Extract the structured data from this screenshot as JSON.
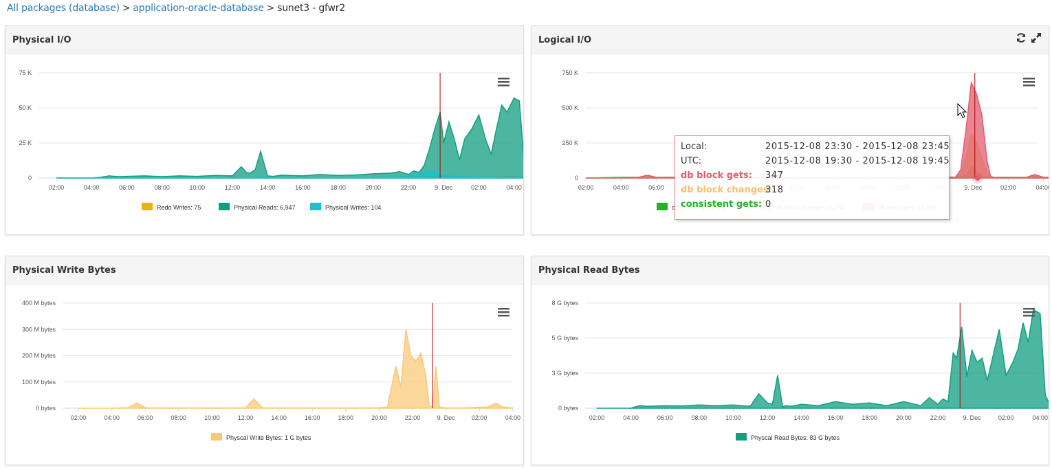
{
  "breadcrumb": {
    "items": [
      "All packages (database)",
      "application-oracle-database"
    ],
    "separator": ">",
    "current": "sunet3 - gfwr2"
  },
  "panels": {
    "physical_io": {
      "title": "Physical I/O"
    },
    "logical_io": {
      "title": "Logical I/O",
      "tools": [
        "refresh-icon",
        "expand-icon"
      ]
    },
    "physical_write_bytes": {
      "title": "Physical Write Bytes"
    },
    "physical_read_bytes": {
      "title": "Physical Read Bytes"
    }
  },
  "tooltip": {
    "local_label": "Local:",
    "local_value": "2015-12-08 23:30 - 2015-12-08 23:45",
    "utc_label": "UTC:",
    "utc_value": "2015-12-08 19:30 - 2015-12-08 19:45",
    "rows": [
      {
        "label": "db block gets:",
        "value": "347",
        "color": "#e05d6f"
      },
      {
        "label": "db block changes:",
        "value": "318",
        "color": "#f5c26b"
      },
      {
        "label": "consistent gets:",
        "value": "0",
        "color": "#24b224"
      }
    ]
  },
  "colors": {
    "link": "#2a7ab8",
    "teal": "#119e81",
    "cyan": "#17c3cc",
    "yellow": "#e8b600",
    "peach": "#f9c97b",
    "red": "#e05d6f",
    "green": "#24b224",
    "marker": "#b00000"
  },
  "chart_data": [
    {
      "type": "area",
      "panel": "physical_io",
      "title": "Physical I/O",
      "x_ticks": [
        "02:00",
        "04:00",
        "06:00",
        "08:00",
        "10:00",
        "12:00",
        "14:00",
        "16:00",
        "18:00",
        "20:00",
        "22:00",
        "9. Dec",
        "02:00",
        "04:00"
      ],
      "y_ticks": [
        "0",
        "25 K",
        "50 K",
        "75 K"
      ],
      "ylim": [
        0,
        75000
      ],
      "x_hours": [
        0,
        2,
        2.5,
        3,
        3.5,
        4,
        5,
        6,
        7,
        8,
        9,
        10,
        10.5,
        10.8,
        11,
        11.3,
        11.6,
        12,
        12.3,
        12.8,
        14,
        15,
        16,
        17,
        18,
        19,
        19.5,
        20,
        20.3,
        20.6,
        20.9,
        21.2,
        21.5,
        21.8,
        22,
        22.3,
        22.6,
        22.9,
        23.2,
        23.6,
        24,
        24.4,
        24.7,
        25,
        25.3,
        25.6,
        26,
        26.3,
        26.6,
        26.8,
        27
      ],
      "x_labeled_hours": [
        0,
        2,
        4,
        6,
        8,
        10,
        12,
        14,
        16,
        18,
        20,
        22,
        24,
        26
      ],
      "marker_hour": 21.8,
      "grid": true,
      "legend_position": "bottom",
      "series": [
        {
          "name": "Redo Writes: 75",
          "color": "#e8b600",
          "values": [
            0,
            0,
            100,
            200,
            150,
            300,
            200,
            250,
            300,
            200,
            300,
            400,
            300,
            300,
            500,
            600,
            400,
            500,
            300,
            300,
            300,
            200,
            300,
            300,
            400,
            200,
            300,
            500,
            400,
            600,
            800,
            900,
            1200,
            1500,
            1600,
            1400,
            1200,
            1000,
            800,
            700,
            600,
            500,
            400,
            500,
            600,
            700,
            900,
            600,
            300,
            200,
            100
          ]
        },
        {
          "name": "Physical Reads: 6,947",
          "color": "#119e81",
          "values": [
            0,
            0,
            500,
            1500,
            1000,
            1200,
            1500,
            1000,
            1500,
            1200,
            1800,
            1500,
            8000,
            4000,
            3500,
            6000,
            19000,
            1500,
            1200,
            2000,
            1500,
            2500,
            1800,
            2200,
            3000,
            3500,
            4500,
            2500,
            5000,
            4000,
            9000,
            21000,
            35000,
            47000,
            25000,
            40000,
            28000,
            13000,
            28000,
            35000,
            45000,
            27000,
            17000,
            35000,
            52000,
            47000,
            57000,
            55000,
            7000,
            2000,
            2500
          ]
        },
        {
          "name": "Physical Writes: 104",
          "color": "#17c3cc",
          "values": [
            0,
            0,
            0,
            200,
            100,
            200,
            300,
            200,
            200,
            300,
            400,
            200,
            300,
            300,
            500,
            600,
            800,
            300,
            300,
            400,
            300,
            400,
            300,
            400,
            500,
            600,
            700,
            1200,
            2000,
            3000,
            4000,
            5000,
            4000,
            3000,
            2000,
            1500,
            1200,
            1000,
            900,
            900,
            700,
            600,
            500,
            500,
            400,
            400,
            300,
            300,
            200,
            100,
            100
          ]
        }
      ]
    },
    {
      "type": "area",
      "panel": "logical_io",
      "title": "Logical I/O",
      "x_ticks": [
        "02:00",
        "04:00",
        "06:00",
        "08:00",
        "10:00",
        "12:00",
        "14:00",
        "16:00",
        "18:00",
        "20:00",
        "22:00",
        "9. Dec",
        "02:00",
        "04:00"
      ],
      "y_ticks": [
        "0",
        "250 K",
        "500 K",
        "750 K"
      ],
      "ylim": [
        0,
        750000
      ],
      "x_hours": [
        0,
        2,
        3,
        3.5,
        4,
        5,
        8,
        10,
        15,
        20,
        21,
        21.3,
        21.6,
        21.9,
        22.2,
        22.5,
        22.8,
        23,
        23.2,
        23.5,
        24,
        25,
        25.5,
        26,
        27
      ],
      "x_labeled_hours": [
        0,
        2,
        4,
        6,
        8,
        10,
        12,
        14,
        16,
        18,
        20,
        22,
        24,
        26
      ],
      "marker_hour": 22.1,
      "grid": true,
      "legend_position": "bottom",
      "series": [
        {
          "name": "consistent gets: 1 K",
          "color": "#24b224",
          "values": [
            0,
            5000,
            5000,
            8000,
            5000,
            5000,
            5000,
            5000,
            5000,
            5000,
            6000,
            8000,
            25000,
            80000,
            40000,
            10000,
            6000,
            5000,
            5000,
            5000,
            5000,
            5000,
            5000,
            5000,
            5000
          ]
        },
        {
          "name": "db block changes: 9,274",
          "color": "#f5c26b",
          "values": [
            0,
            0,
            3000,
            8000,
            3000,
            2000,
            2000,
            2000,
            2000,
            3000,
            4000,
            30000,
            150000,
            310000,
            250000,
            140000,
            30000,
            5000,
            3000,
            2000,
            2000,
            3000,
            15000,
            3000,
            1000
          ]
        },
        {
          "name": "db block gets: 13,993",
          "color": "#e05d6f",
          "values": [
            0,
            0,
            5000,
            20000,
            5000,
            3000,
            3000,
            3000,
            3000,
            4000,
            6000,
            60000,
            350000,
            680000,
            600000,
            450000,
            120000,
            10000,
            5000,
            3000,
            3000,
            4000,
            25000,
            5000,
            2000
          ]
        }
      ]
    },
    {
      "type": "area",
      "panel": "physical_write_bytes",
      "title": "Physical Write Bytes",
      "x_ticks": [
        "02:00",
        "04:00",
        "06:00",
        "08:00",
        "10:00",
        "12:00",
        "14:00",
        "16:00",
        "18:00",
        "20:00",
        "22:00",
        "9. Dec",
        "02:00",
        "04:00"
      ],
      "y_ticks": [
        "0 bytes",
        "100 M bytes",
        "200 M bytes",
        "300 M bytes",
        "400 M bytes"
      ],
      "ylim": [
        0,
        400000000
      ],
      "x_hours": [
        0,
        2,
        3,
        3.5,
        4,
        4.5,
        5,
        9,
        10,
        10.5,
        11,
        11.5,
        12,
        17,
        18,
        18.5,
        19,
        19.3,
        19.6,
        19.9,
        20.2,
        20.5,
        20.8,
        21,
        21.2,
        21.4,
        21.6,
        22,
        23,
        24.5,
        25,
        25.4,
        26
      ],
      "x_labeled_hours": [
        0,
        2,
        4,
        6,
        8,
        10,
        12,
        14,
        16,
        18,
        20,
        22,
        24,
        26
      ],
      "marker_hour": 21.2,
      "grid": true,
      "legend_position": "bottom",
      "series": [
        {
          "name": "Physcal Write Bytes: 1 G bytes",
          "color": "#f9c97b",
          "values": [
            0,
            0,
            2000000,
            20000000,
            2000000,
            1000000,
            1000000,
            1000000,
            1500000,
            35000000,
            2000000,
            1000000,
            1000000,
            1000000,
            2000000,
            5000000,
            160000000,
            80000000,
            300000000,
            200000000,
            180000000,
            210000000,
            120000000,
            10000000,
            5000000,
            160000000,
            5000000,
            1000000,
            1000000,
            5000000,
            20000000,
            5000000,
            1000000
          ]
        }
      ]
    },
    {
      "type": "area",
      "panel": "physical_read_bytes",
      "title": "Physical Read Bytes",
      "x_ticks": [
        "02:00",
        "04:00",
        "06:00",
        "08:00",
        "10:00",
        "12:00",
        "14:00",
        "16:00",
        "18:00",
        "20:00",
        "22:00",
        "9. Dec",
        "02:00",
        "04:00"
      ],
      "y_ticks": [
        "0 bytes",
        "3 G bytes",
        "5 G bytes",
        "8 G bytes"
      ],
      "ylim": [
        0,
        8000000000
      ],
      "x_hours": [
        0,
        2,
        2.5,
        3,
        4,
        5,
        6,
        7,
        8,
        9,
        9.5,
        10,
        10.3,
        10.6,
        10.9,
        11.1,
        11.4,
        12,
        13,
        14,
        15,
        16,
        17,
        18,
        19,
        19.5,
        20,
        20.3,
        20.6,
        20.9,
        21.1,
        21.4,
        21.7,
        22,
        22.3,
        22.6,
        22.9,
        23.2,
        23.6,
        24,
        24.4,
        24.7,
        25,
        25.3,
        25.6,
        26,
        26.3,
        26.6,
        26.8,
        27
      ],
      "x_labeled_hours": [
        0,
        2,
        4,
        6,
        8,
        10,
        12,
        14,
        16,
        18,
        20,
        22,
        24,
        26
      ],
      "marker_hour": 21.3,
      "grid": true,
      "legend_position": "bottom",
      "series": [
        {
          "name": "Physcal Read Bytes: 83 G bytes",
          "color": "#119e81",
          "values": [
            0,
            0,
            200000000,
            150000000,
            200000000,
            180000000,
            250000000,
            200000000,
            250000000,
            150000000,
            1100000000,
            400000000,
            300000000,
            2500000000,
            100000000,
            200000000,
            150000000,
            300000000,
            200000000,
            500000000,
            300000000,
            400000000,
            200000000,
            500000000,
            200000000,
            800000000,
            300000000,
            700000000,
            500000000,
            4200000000,
            3800000000,
            6200000000,
            2400000000,
            4400000000,
            3500000000,
            3800000000,
            2100000000,
            3800000000,
            6000000000,
            2500000000,
            3500000000,
            4500000000,
            6500000000,
            5000000000,
            7500000000,
            7200000000,
            1000000000,
            200000000,
            100000000,
            200000000
          ]
        }
      ]
    }
  ]
}
